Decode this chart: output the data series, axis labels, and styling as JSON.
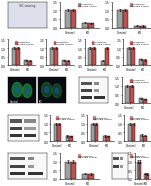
{
  "background": "#ffffff",
  "bar_color_gray": "#a0a0a0",
  "bar_color_red": "#c0504d",
  "legend_label1": "Transfection",
  "legend_label2": "Soluble Control",
  "legend_label_ctrl": "Control",
  "legend_label_kd": "KD",
  "panels": [
    {
      "type": "bar2",
      "vals1": [
        1.0,
        0.28
      ],
      "vals2": [
        1.0,
        0.25
      ],
      "ylim": 1.5
    },
    {
      "type": "bar2",
      "vals1": [
        1.0,
        0.15
      ],
      "vals2": [
        1.0,
        0.12
      ],
      "ylim": 1.5
    },
    {
      "type": "bar4",
      "vals1": [
        1.0,
        0.3,
        1.0,
        0.28
      ],
      "ylim": 1.5
    },
    {
      "type": "bar4",
      "vals1": [
        1.0,
        0.3,
        1.0,
        0.28
      ],
      "ylim": 1.5
    },
    {
      "type": "bar4",
      "vals1": [
        1.0,
        0.3,
        1.0,
        0.28
      ],
      "ylim": 1.5
    },
    {
      "type": "bar4",
      "vals1": [
        1.0,
        1.0,
        0.28,
        0.28
      ],
      "ylim": 1.5
    },
    {
      "type": "bar2",
      "vals1": [
        1.0,
        0.3
      ],
      "vals2": [
        1.0,
        0.25
      ],
      "ylim": 1.5
    },
    {
      "type": "bar2",
      "vals1": [
        1.0,
        0.28
      ],
      "vals2": [
        1.0,
        0.22
      ],
      "ylim": 1.5
    },
    {
      "type": "bar2",
      "vals1": [
        1.0,
        0.3
      ],
      "vals2": [
        1.0,
        0.28
      ],
      "ylim": 1.5
    },
    {
      "type": "bar2",
      "vals1": [
        1.0,
        0.3
      ],
      "vals2": [
        1.0,
        0.28
      ],
      "ylim": 1.5
    }
  ]
}
